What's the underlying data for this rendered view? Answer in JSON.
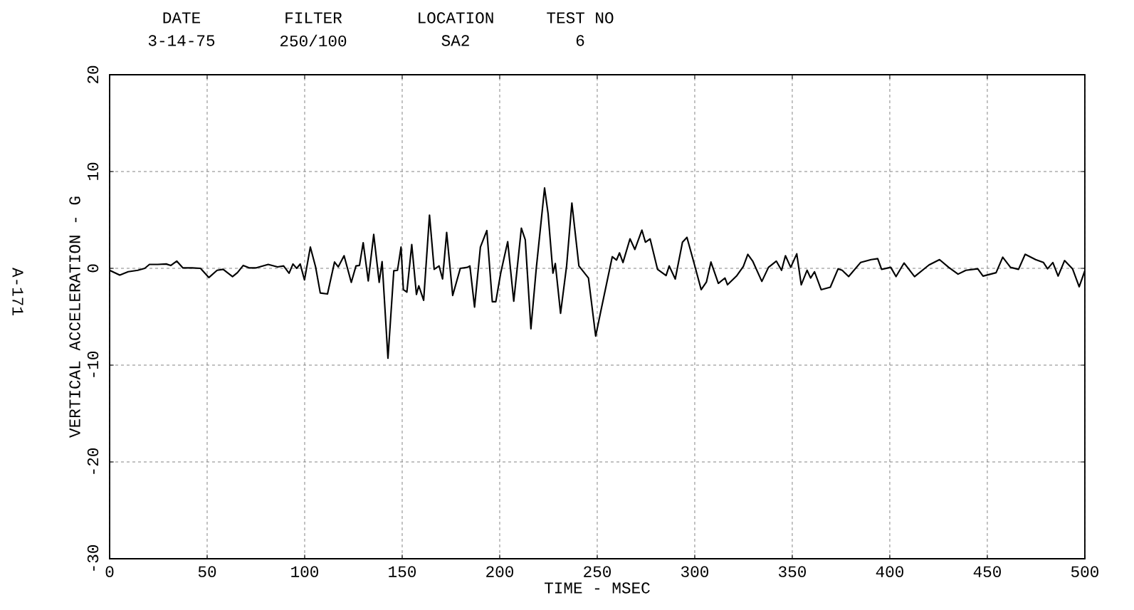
{
  "chart_data": {
    "type": "line",
    "annotations": [
      "DATE",
      "3-14-75",
      "FILTER",
      "250/100",
      "LOCATION",
      "SA2",
      "TEST NO",
      "6",
      "A-171"
    ],
    "xlabel": "TIME - MSEC",
    "ylabel": "VERTICAL ACCELERATION - G",
    "xlim": [
      0,
      500
    ],
    "ylim": [
      -30,
      20
    ],
    "xticks": [
      0,
      50,
      100,
      150,
      200,
      250,
      300,
      350,
      400,
      450,
      500
    ],
    "yticks": [
      -30,
      -20,
      -10,
      0,
      10,
      20
    ],
    "grid": true,
    "marker": "none",
    "line_style": "solid",
    "series": [
      {
        "color": "#000000",
        "x": [
          0,
          5.2,
          9.5,
          14.4,
          18,
          20.4,
          24.7,
          29,
          31.4,
          34.4,
          37.5,
          42.3,
          46.6,
          50.9,
          55.1,
          58.2,
          63,
          65.5,
          68.5,
          71.5,
          75.2,
          81.3,
          86.1,
          89.2,
          92,
          94,
          95.9,
          97.7,
          99.9,
          102.9,
          105.6,
          108,
          111.7,
          115.3,
          117.2,
          120.2,
          123.9,
          126.3,
          128.1,
          130,
          132.6,
          135.4,
          138.2,
          139.7,
          142.7,
          145.7,
          147.6,
          149.4,
          150.6,
          152.4,
          154.9,
          157.3,
          158.5,
          161,
          164,
          166.4,
          168.9,
          170.7,
          172.8,
          175.9,
          179.8,
          183.4,
          184.7,
          187.1,
          190.1,
          193.4,
          196.2,
          198,
          200.5,
          204.1,
          207.2,
          211.1,
          213.1,
          216,
          218.7,
          223,
          224.8,
          227.3,
          228.5,
          231.2,
          234.3,
          237,
          240.6,
          245.5,
          249.2,
          251.6,
          255.2,
          257.7,
          259.9,
          261.4,
          263.2,
          266.8,
          269.3,
          272.9,
          274.7,
          277.1,
          280.9,
          285.3,
          286.9,
          290,
          293.7,
          296,
          299.7,
          303.3,
          306,
          308.3,
          312.1,
          315.5,
          316.8,
          321.6,
          324.9,
          327.2,
          329.7,
          334.4,
          337.8,
          341.8,
          344.5,
          346.5,
          349.2,
          352.3,
          354.6,
          357.6,
          359.4,
          361.4,
          364.8,
          369.5,
          373.5,
          375.6,
          378.9,
          385,
          390.4,
          393.8,
          395.8,
          400.5,
          403.2,
          407.3,
          412.7,
          420.1,
          425.5,
          430.2,
          435,
          439,
          445.1,
          447.8,
          454.5,
          457.9,
          461.9,
          466,
          469.4,
          474.8,
          478.8,
          480.9,
          483.6,
          486.3,
          489.6,
          493.7,
          497.1,
          500
        ],
        "values": [
          -0.2,
          -0.7,
          -0.35,
          -0.2,
          0,
          0.4,
          0.4,
          0.45,
          0.3,
          0.75,
          0.05,
          0.05,
          0,
          -0.95,
          -0.2,
          -0.1,
          -0.85,
          -0.45,
          0.3,
          0.05,
          0.05,
          0.4,
          0.15,
          0.25,
          -0.5,
          0.45,
          0,
          0.45,
          -1.2,
          2.2,
          0.15,
          -2.55,
          -2.65,
          0.65,
          0.15,
          1.3,
          -1.45,
          0.25,
          0.3,
          2.65,
          -1.3,
          3.5,
          -1.45,
          0.7,
          -9.3,
          -0.25,
          -0.2,
          2.2,
          -2.2,
          -2.45,
          2.45,
          -2.7,
          -1.8,
          -3.3,
          5.5,
          -0.1,
          0.25,
          -1.1,
          3.7,
          -2.8,
          0,
          0.1,
          0.25,
          -4,
          2.2,
          3.9,
          -3.45,
          -3.45,
          -0.5,
          2.75,
          -3.4,
          4.15,
          2.95,
          -6.25,
          -0.1,
          8.3,
          5.65,
          -0.5,
          0.5,
          -4.65,
          0.25,
          6.75,
          0.25,
          -1,
          -7,
          -4.65,
          -1.2,
          1.2,
          0.85,
          1.6,
          0.6,
          3.05,
          1.95,
          3.95,
          2.7,
          3.05,
          -0.1,
          -0.75,
          0.25,
          -1.1,
          2.7,
          3.2,
          0.5,
          -2.2,
          -1.4,
          0.65,
          -1.55,
          -1,
          -1.7,
          -0.75,
          0.2,
          1.45,
          0.75,
          -1.35,
          0.1,
          0.75,
          -0.2,
          1.3,
          0.1,
          1.5,
          -1.7,
          -0.2,
          -1,
          -0.35,
          -2.2,
          -1.95,
          -0.05,
          -0.2,
          -0.85,
          0.6,
          0.9,
          1,
          -0.1,
          0.1,
          -0.85,
          0.55,
          -0.85,
          0.35,
          0.9,
          0.1,
          -0.6,
          -0.2,
          -0.05,
          -0.8,
          -0.45,
          1.15,
          0.1,
          -0.1,
          1.45,
          0.9,
          0.6,
          -0.05,
          0.6,
          -0.8,
          0.8,
          -0.05,
          -1.9,
          -0.25
        ]
      }
    ]
  }
}
